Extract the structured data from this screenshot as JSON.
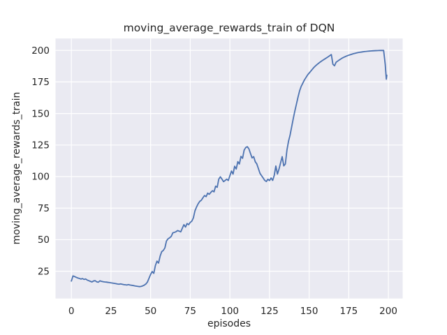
{
  "figure": {
    "background_color": "#ffffff"
  },
  "chart_data": {
    "type": "line",
    "title": "moving_average_rewards_train of DQN",
    "xlabel": "episodes",
    "ylabel": "moving_average_rewards_train",
    "x_ticks": [
      0,
      25,
      50,
      75,
      100,
      125,
      150,
      175,
      200
    ],
    "y_ticks": [
      25,
      50,
      75,
      100,
      125,
      150,
      175,
      200
    ],
    "xlim": [
      -10,
      209
    ],
    "ylim": [
      3.4,
      209.4
    ],
    "grid": true,
    "legend_position": "none",
    "style": {
      "line_color": "#4C72B0",
      "plot_background": "#EAEAF2",
      "grid_color": "#FFFFFF",
      "text_color": "#262626",
      "line_width": 1.8
    },
    "series": [
      {
        "name": "moving_average_rewards_train",
        "points": [
          [
            0,
            17.2
          ],
          [
            1,
            21.3
          ],
          [
            2,
            20.8
          ],
          [
            3,
            20.2
          ],
          [
            4,
            19.7
          ],
          [
            5,
            19.3
          ],
          [
            6,
            18.8
          ],
          [
            7,
            19.2
          ],
          [
            8,
            18.5
          ],
          [
            9,
            18.9
          ],
          [
            10,
            18.0
          ],
          [
            11,
            17.5
          ],
          [
            12,
            17.0
          ],
          [
            13,
            16.5
          ],
          [
            14,
            17.3
          ],
          [
            15,
            17.5
          ],
          [
            16,
            16.6
          ],
          [
            17,
            16.3
          ],
          [
            18,
            17.4
          ],
          [
            19,
            17.0
          ],
          [
            20,
            16.7
          ],
          [
            21,
            16.5
          ],
          [
            22,
            16.4
          ],
          [
            23,
            16.2
          ],
          [
            24,
            16.0
          ],
          [
            25,
            15.8
          ],
          [
            26,
            15.6
          ],
          [
            27,
            15.4
          ],
          [
            28,
            15.2
          ],
          [
            29,
            14.9
          ],
          [
            30,
            14.7
          ],
          [
            31,
            15.0
          ],
          [
            32,
            14.7
          ],
          [
            33,
            14.4
          ],
          [
            34,
            14.3
          ],
          [
            35,
            14.1
          ],
          [
            36,
            14.4
          ],
          [
            37,
            14.1
          ],
          [
            38,
            13.9
          ],
          [
            39,
            13.7
          ],
          [
            40,
            13.4
          ],
          [
            41,
            13.2
          ],
          [
            42,
            13.0
          ],
          [
            43,
            12.8
          ],
          [
            44,
            13.0
          ],
          [
            45,
            13.4
          ],
          [
            46,
            14.0
          ],
          [
            47,
            14.9
          ],
          [
            48,
            16.5
          ],
          [
            49,
            19.5
          ],
          [
            50,
            22.5
          ],
          [
            51,
            24.8
          ],
          [
            52,
            23.3
          ],
          [
            53,
            29.5
          ],
          [
            54,
            33.0
          ],
          [
            55,
            31.5
          ],
          [
            56,
            37.0
          ],
          [
            57,
            40.5
          ],
          [
            58,
            41.5
          ],
          [
            59,
            43.5
          ],
          [
            60,
            49.0
          ],
          [
            61,
            50.7
          ],
          [
            62,
            51.5
          ],
          [
            63,
            52.6
          ],
          [
            64,
            55.4
          ],
          [
            65,
            55.8
          ],
          [
            66,
            56.3
          ],
          [
            67,
            57.2
          ],
          [
            68,
            56.8
          ],
          [
            69,
            56.2
          ],
          [
            70,
            59.1
          ],
          [
            71,
            61.9
          ],
          [
            72,
            60.0
          ],
          [
            73,
            62.8
          ],
          [
            74,
            61.9
          ],
          [
            75,
            63.7
          ],
          [
            76,
            64.7
          ],
          [
            77,
            67.4
          ],
          [
            78,
            73.0
          ],
          [
            79,
            76.0
          ],
          [
            80,
            78.5
          ],
          [
            81,
            80.4
          ],
          [
            82,
            81.3
          ],
          [
            83,
            83.2
          ],
          [
            84,
            85.0
          ],
          [
            85,
            84.1
          ],
          [
            86,
            86.9
          ],
          [
            87,
            86.0
          ],
          [
            88,
            87.5
          ],
          [
            89,
            88.8
          ],
          [
            90,
            87.9
          ],
          [
            91,
            92.4
          ],
          [
            92,
            91.5
          ],
          [
            93,
            98.0
          ],
          [
            94,
            99.8
          ],
          [
            95,
            98.0
          ],
          [
            96,
            96.0
          ],
          [
            97,
            96.9
          ],
          [
            98,
            98.0
          ],
          [
            99,
            96.9
          ],
          [
            100,
            100.7
          ],
          [
            101,
            104.4
          ],
          [
            102,
            102.0
          ],
          [
            103,
            108.2
          ],
          [
            104,
            106.0
          ],
          [
            105,
            111.8
          ],
          [
            106,
            110.0
          ],
          [
            107,
            116.0
          ],
          [
            108,
            114.5
          ],
          [
            109,
            121.0
          ],
          [
            110,
            123.0
          ],
          [
            111,
            123.7
          ],
          [
            112,
            122.0
          ],
          [
            113,
            118.3
          ],
          [
            114,
            114.8
          ],
          [
            115,
            115.8
          ],
          [
            116,
            111.8
          ],
          [
            117,
            110.0
          ],
          [
            118,
            106.3
          ],
          [
            119,
            102.6
          ],
          [
            120,
            100.7
          ],
          [
            121,
            98.9
          ],
          [
            122,
            97.0
          ],
          [
            123,
            96.1
          ],
          [
            124,
            97.9
          ],
          [
            125,
            96.9
          ],
          [
            126,
            98.9
          ],
          [
            127,
            97.0
          ],
          [
            128,
            101.0
          ],
          [
            129,
            108.4
          ],
          [
            130,
            102.0
          ],
          [
            131,
            106.0
          ],
          [
            132,
            111.0
          ],
          [
            133,
            115.8
          ],
          [
            134,
            108.5
          ],
          [
            135,
            110.0
          ],
          [
            136,
            121.0
          ],
          [
            137,
            128.0
          ],
          [
            138,
            133.0
          ],
          [
            139,
            139.5
          ],
          [
            140,
            146.0
          ],
          [
            141,
            152.0
          ],
          [
            142,
            157.5
          ],
          [
            143,
            163.0
          ],
          [
            144,
            168.0
          ],
          [
            145,
            171.5
          ],
          [
            146,
            174.0
          ],
          [
            147,
            176.5
          ],
          [
            148,
            178.5
          ],
          [
            149,
            180.5
          ],
          [
            150,
            182.0
          ],
          [
            151,
            183.5
          ],
          [
            152,
            185.0
          ],
          [
            153,
            186.5
          ],
          [
            154,
            187.7
          ],
          [
            155,
            188.8
          ],
          [
            156,
            189.8
          ],
          [
            157,
            190.8
          ],
          [
            158,
            191.7
          ],
          [
            159,
            192.5
          ],
          [
            160,
            193.3
          ],
          [
            161,
            194.1
          ],
          [
            162,
            194.9
          ],
          [
            163,
            195.8
          ],
          [
            164,
            196.7
          ],
          [
            165,
            189.0
          ],
          [
            166,
            187.8
          ],
          [
            167,
            190.6
          ],
          [
            168,
            191.5
          ],
          [
            169,
            192.4
          ],
          [
            170,
            193.2
          ],
          [
            171,
            194.0
          ],
          [
            172,
            194.6
          ],
          [
            173,
            195.2
          ],
          [
            174,
            195.7
          ],
          [
            175,
            196.2
          ],
          [
            176,
            196.6
          ],
          [
            177,
            197.0
          ],
          [
            178,
            197.4
          ],
          [
            179,
            197.7
          ],
          [
            180,
            198.0
          ],
          [
            181,
            198.3
          ],
          [
            182,
            198.5
          ],
          [
            183,
            198.7
          ],
          [
            184,
            198.9
          ],
          [
            185,
            199.1
          ],
          [
            186,
            199.2
          ],
          [
            187,
            199.35
          ],
          [
            188,
            199.45
          ],
          [
            189,
            199.55
          ],
          [
            190,
            199.65
          ],
          [
            191,
            199.72
          ],
          [
            192,
            199.8
          ],
          [
            193,
            199.85
          ],
          [
            194,
            199.9
          ],
          [
            195,
            199.93
          ],
          [
            196,
            199.95
          ],
          [
            197,
            199.96
          ],
          [
            198,
            189.0
          ],
          [
            198.7,
            177.2
          ],
          [
            199,
            180.3
          ]
        ]
      }
    ]
  }
}
